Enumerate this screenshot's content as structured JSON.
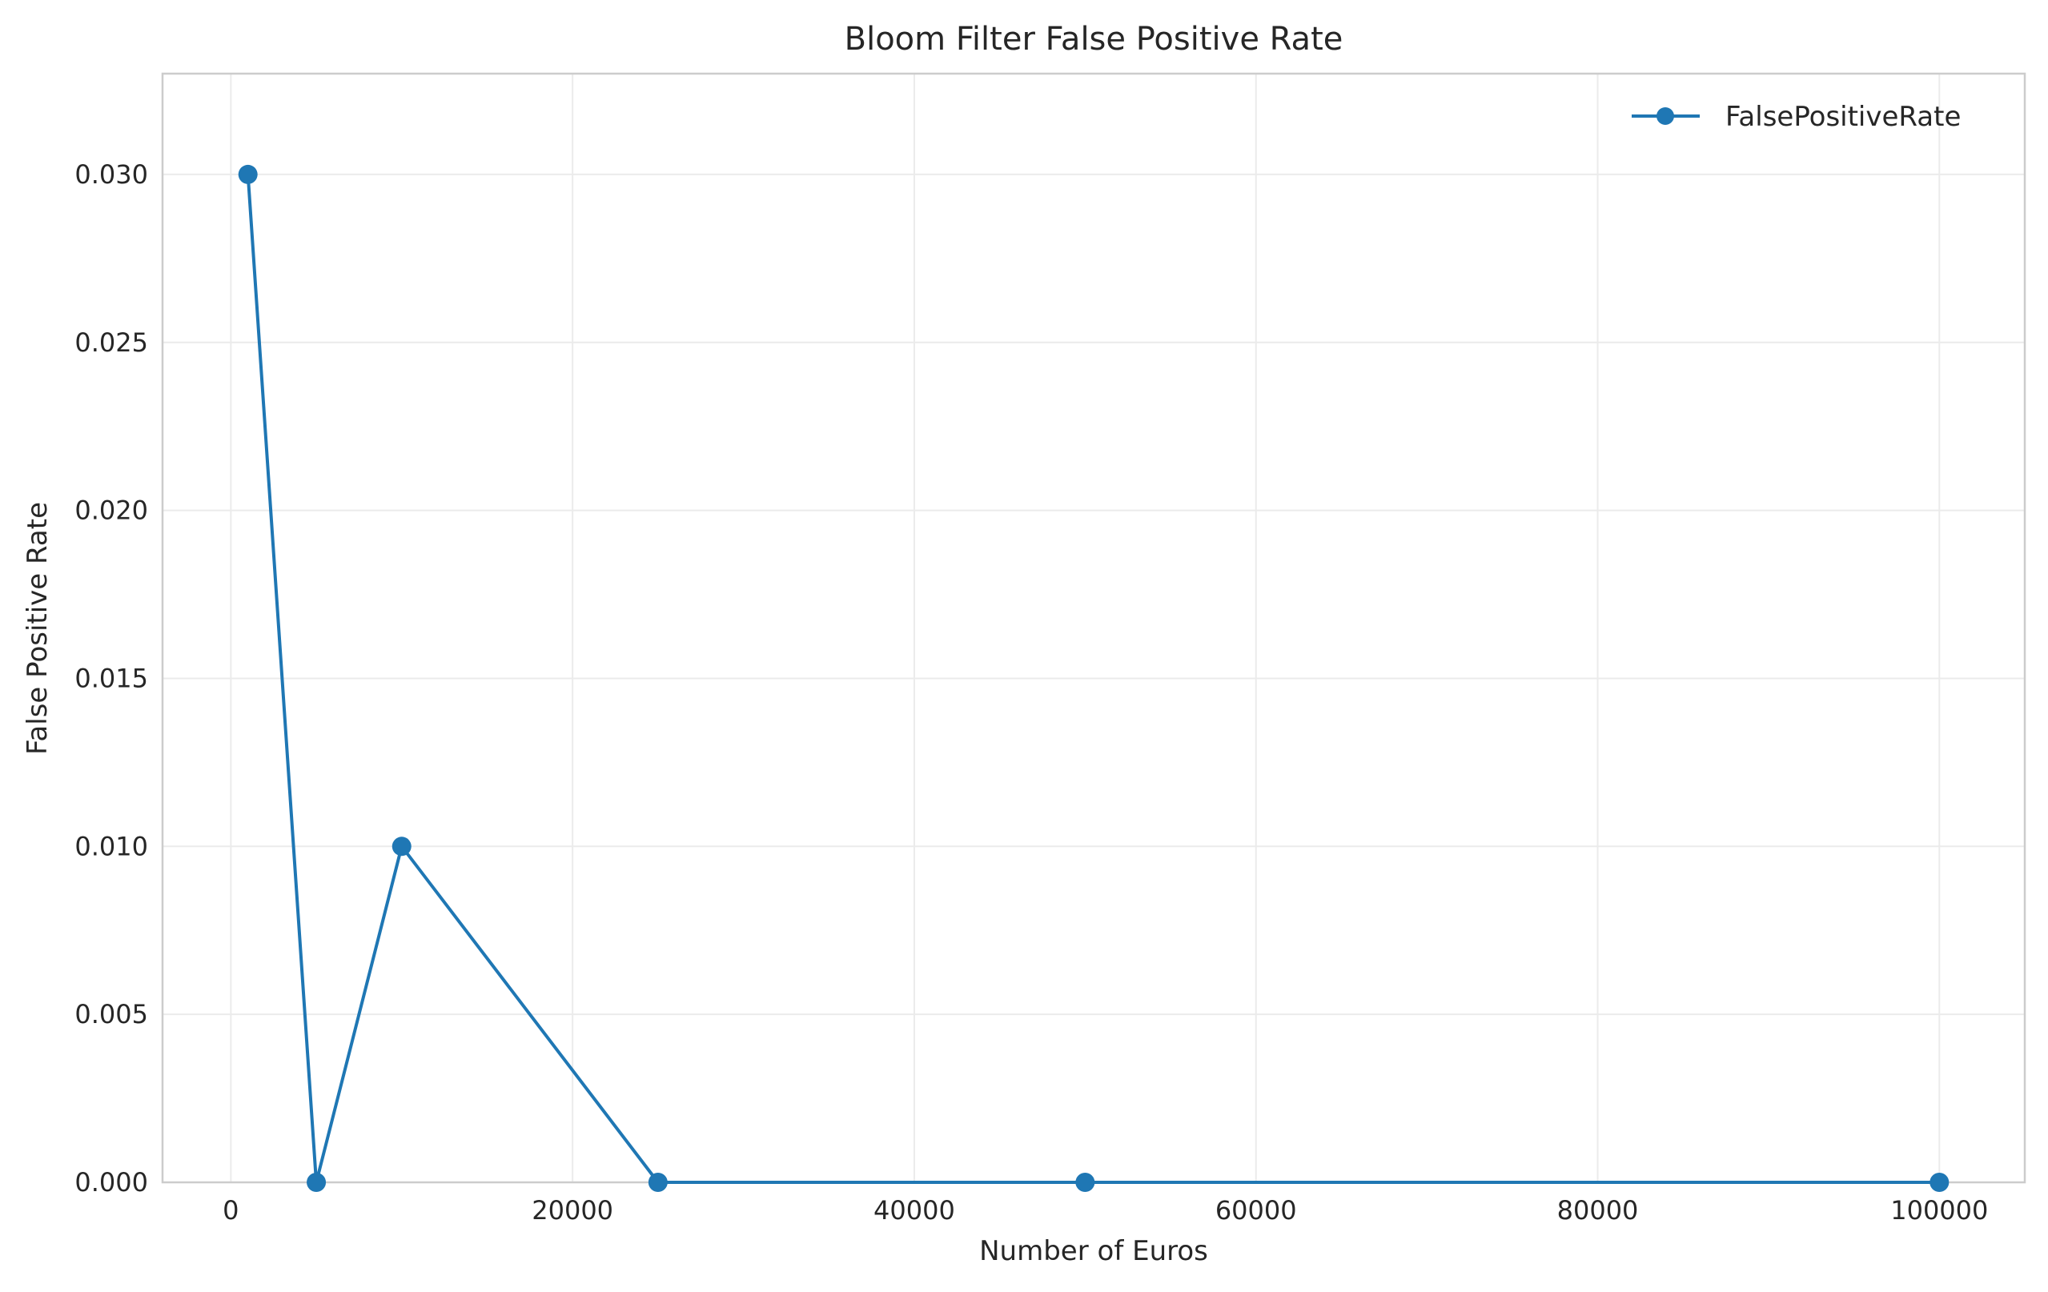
{
  "chart_data": {
    "type": "line",
    "title": "Bloom Filter False Positive Rate",
    "xlabel": "Number of Euros",
    "ylabel": "False Positive Rate",
    "xlim": [
      -4000,
      105000
    ],
    "ylim": [
      0,
      0.033
    ],
    "x_ticks": [
      0,
      20000,
      40000,
      60000,
      80000,
      100000
    ],
    "x_tick_labels": [
      "0",
      "20000",
      "40000",
      "60000",
      "80000",
      "100000"
    ],
    "y_ticks": [
      0,
      0.005,
      0.01,
      0.015,
      0.02,
      0.025,
      0.03
    ],
    "y_tick_labels": [
      "0.000",
      "0.005",
      "0.010",
      "0.015",
      "0.020",
      "0.025",
      "0.030"
    ],
    "grid": true,
    "legend_position": "top-right",
    "series": [
      {
        "name": "FalsePositiveRate",
        "color": "#1f77b4",
        "marker": "circle",
        "x": [
          1000,
          5000,
          10000,
          25000,
          50000,
          100000
        ],
        "y": [
          0.03,
          0.0,
          0.01,
          0.0,
          0.0,
          0.0
        ]
      }
    ]
  }
}
